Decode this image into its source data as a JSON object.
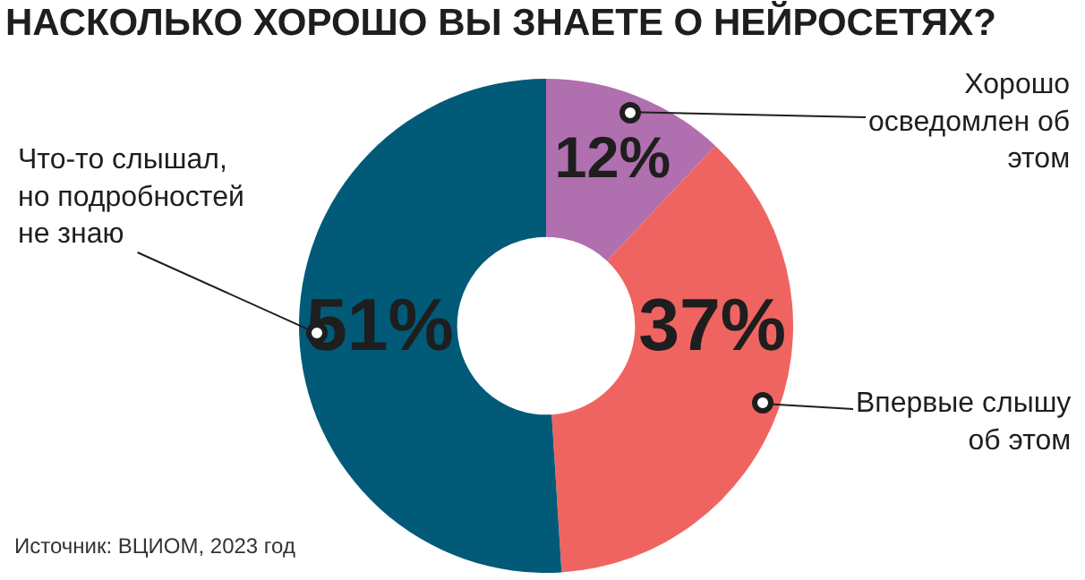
{
  "chart_data": {
    "type": "donut",
    "title": "НАСКОЛЬКО ХОРОШО ВЫ ЗНАЕТЕ О НЕЙРОСЕТЯХ?",
    "categories": [
      "Хорошо осведомлен об этом",
      "Впервые слышу об этом",
      "Что-то слышал, но подробностей не знаю"
    ],
    "values": [
      12,
      37,
      51
    ],
    "colors": [
      "#b06fae",
      "#ef6461",
      "#005a78"
    ],
    "value_labels": [
      "12%",
      "37%",
      "51%"
    ],
    "annotations": [
      "Источник: ВЦИОМ, 2023 год"
    ],
    "legend": false
  }
}
